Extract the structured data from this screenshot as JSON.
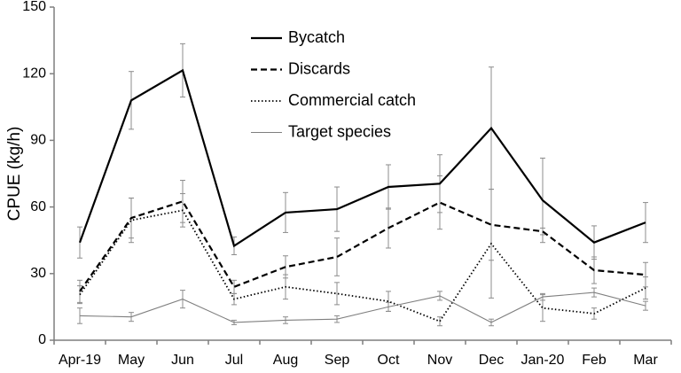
{
  "chart_data": {
    "type": "line",
    "title": "",
    "xlabel": "",
    "ylabel": "CPUE (kg/h)",
    "categories": [
      "Apr-19",
      "May",
      "Jun",
      "Jul",
      "Aug",
      "Sep",
      "Oct",
      "Nov",
      "Dec",
      "Jan-20",
      "Feb",
      "Mar"
    ],
    "ylim": [
      0,
      150
    ],
    "yticks": [
      "0",
      "30",
      "60",
      "90",
      "120",
      "150"
    ],
    "grid": false,
    "legend_position": "top-center",
    "series": [
      {
        "name": "Bycatch",
        "style": "solid-thick",
        "color": "#000000",
        "values": [
          44,
          108,
          121.5,
          42.5,
          57.5,
          59,
          69,
          70.5,
          95.5,
          63,
          44,
          53
        ],
        "error": [
          7,
          13,
          12,
          4,
          9,
          10,
          10,
          13,
          27.5,
          19,
          7.5,
          9
        ]
      },
      {
        "name": "Discards",
        "style": "dashed",
        "color": "#000000",
        "values": [
          22,
          55,
          62.5,
          24,
          33,
          37.5,
          50.5,
          62,
          52,
          49,
          31.5,
          29.5
        ],
        "error": [
          5,
          9,
          9.5,
          3,
          5,
          8.5,
          9,
          12,
          16,
          1.5,
          6,
          5.5
        ]
      },
      {
        "name": "Commercial catch",
        "style": "dotted",
        "color": "#000000",
        "values": [
          20.5,
          54,
          58.5,
          18.5,
          24,
          21,
          17.5,
          8.5,
          43.5,
          14.5,
          12,
          23.5
        ],
        "error": [
          4,
          10,
          7.5,
          2.5,
          5.5,
          5,
          4.5,
          2,
          24.5,
          6,
          2.5,
          5
        ]
      },
      {
        "name": "Target species",
        "style": "solid-thin",
        "color": "#7f7f7f",
        "values": [
          11,
          10.5,
          18.5,
          8,
          9,
          9.5,
          15,
          20,
          8,
          19.5,
          21.5,
          15.5
        ],
        "error": [
          3.5,
          2,
          4,
          1,
          1.5,
          1.5,
          2,
          2,
          1.5,
          1.5,
          2,
          2
        ]
      }
    ]
  }
}
